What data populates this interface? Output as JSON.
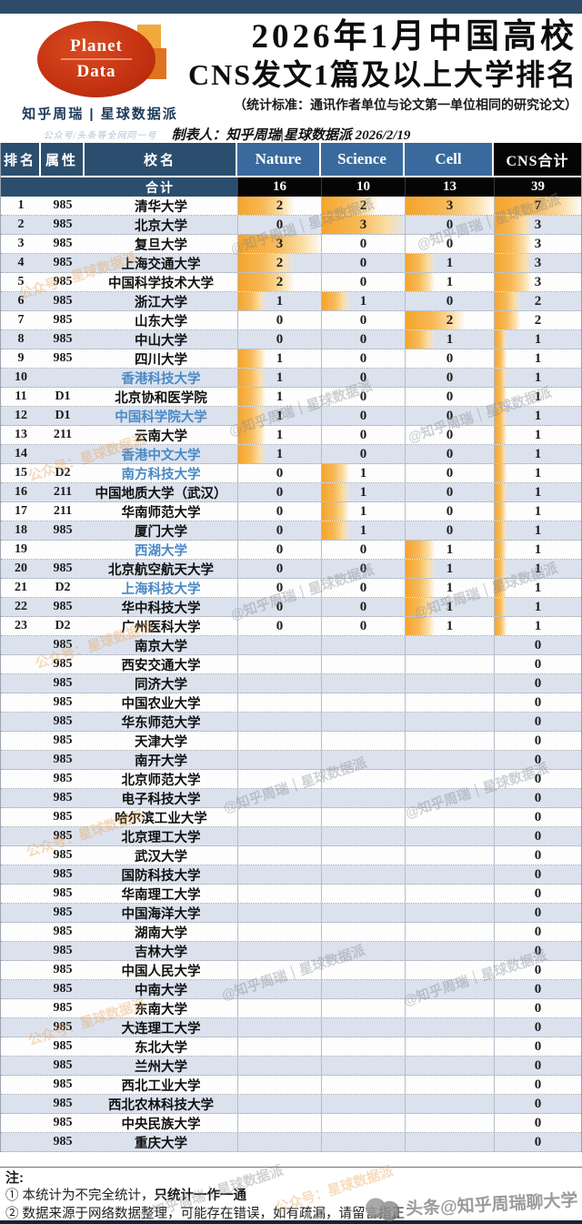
{
  "header": {
    "logo": {
      "line1": "Planet",
      "line2": "Data"
    },
    "brand": "知乎周瑞 | 星球数据派",
    "tagline": "公众号/头条等全网同一号",
    "title_line1": "2026年1月中国高校",
    "title_line2": "CNS发文1篇及以上大学排名",
    "subtitle": "（统计标准：通讯作者单位与论文第一单位相同的研究论文）",
    "byline": "制表人：知乎周瑞|星球数据派 2026/2/19"
  },
  "chart_data": {
    "type": "table",
    "title": "2026年1月中国高校CNS发文1篇及以上大学排名",
    "columns": [
      "排名",
      "属性",
      "校名",
      "Nature",
      "Science",
      "Cell",
      "CNS合计"
    ],
    "total_row": {
      "label": "合计",
      "nature": 16,
      "science": 10,
      "cell": 13,
      "cns": 39
    },
    "rows": [
      {
        "rank": "1",
        "attr": "985",
        "name": "清华大学",
        "nature": 2,
        "science": 2,
        "cell": 3,
        "cns": 7,
        "blue": false
      },
      {
        "rank": "2",
        "attr": "985",
        "name": "北京大学",
        "nature": 0,
        "science": 3,
        "cell": 0,
        "cns": 3,
        "blue": false
      },
      {
        "rank": "3",
        "attr": "985",
        "name": "复旦大学",
        "nature": 3,
        "science": 0,
        "cell": 0,
        "cns": 3,
        "blue": false
      },
      {
        "rank": "4",
        "attr": "985",
        "name": "上海交通大学",
        "nature": 2,
        "science": 0,
        "cell": 1,
        "cns": 3,
        "blue": false
      },
      {
        "rank": "5",
        "attr": "985",
        "name": "中国科学技术大学",
        "nature": 2,
        "science": 0,
        "cell": 1,
        "cns": 3,
        "blue": false
      },
      {
        "rank": "6",
        "attr": "985",
        "name": "浙江大学",
        "nature": 1,
        "science": 1,
        "cell": 0,
        "cns": 2,
        "blue": false
      },
      {
        "rank": "7",
        "attr": "985",
        "name": "山东大学",
        "nature": 0,
        "science": 0,
        "cell": 2,
        "cns": 2,
        "blue": false
      },
      {
        "rank": "8",
        "attr": "985",
        "name": "中山大学",
        "nature": 0,
        "science": 0,
        "cell": 1,
        "cns": 1,
        "blue": false
      },
      {
        "rank": "9",
        "attr": "985",
        "name": "四川大学",
        "nature": 1,
        "science": 0,
        "cell": 0,
        "cns": 1,
        "blue": false
      },
      {
        "rank": "10",
        "attr": "",
        "name": "香港科技大学",
        "nature": 1,
        "science": 0,
        "cell": 0,
        "cns": 1,
        "blue": true
      },
      {
        "rank": "11",
        "attr": "D1",
        "name": "北京协和医学院",
        "nature": 1,
        "science": 0,
        "cell": 0,
        "cns": 1,
        "blue": false
      },
      {
        "rank": "12",
        "attr": "D1",
        "name": "中国科学院大学",
        "nature": 1,
        "science": 0,
        "cell": 0,
        "cns": 1,
        "blue": true
      },
      {
        "rank": "13",
        "attr": "211",
        "name": "云南大学",
        "nature": 1,
        "science": 0,
        "cell": 0,
        "cns": 1,
        "blue": false
      },
      {
        "rank": "14",
        "attr": "",
        "name": "香港中文大学",
        "nature": 1,
        "science": 0,
        "cell": 0,
        "cns": 1,
        "blue": true
      },
      {
        "rank": "15",
        "attr": "D2",
        "name": "南方科技大学",
        "nature": 0,
        "science": 1,
        "cell": 0,
        "cns": 1,
        "blue": true
      },
      {
        "rank": "16",
        "attr": "211",
        "name": "中国地质大学（武汉）",
        "nature": 0,
        "science": 1,
        "cell": 0,
        "cns": 1,
        "blue": false
      },
      {
        "rank": "17",
        "attr": "211",
        "name": "华南师范大学",
        "nature": 0,
        "science": 1,
        "cell": 0,
        "cns": 1,
        "blue": false
      },
      {
        "rank": "18",
        "attr": "985",
        "name": "厦门大学",
        "nature": 0,
        "science": 1,
        "cell": 0,
        "cns": 1,
        "blue": false
      },
      {
        "rank": "19",
        "attr": "",
        "name": "西湖大学",
        "nature": 0,
        "science": 0,
        "cell": 1,
        "cns": 1,
        "blue": true
      },
      {
        "rank": "20",
        "attr": "985",
        "name": "北京航空航天大学",
        "nature": 0,
        "science": 0,
        "cell": 1,
        "cns": 1,
        "blue": false
      },
      {
        "rank": "21",
        "attr": "D2",
        "name": "上海科技大学",
        "nature": 0,
        "science": 0,
        "cell": 1,
        "cns": 1,
        "blue": true
      },
      {
        "rank": "22",
        "attr": "985",
        "name": "华中科技大学",
        "nature": 0,
        "science": 0,
        "cell": 1,
        "cns": 1,
        "blue": false
      },
      {
        "rank": "23",
        "attr": "D2",
        "name": "广州医科大学",
        "nature": 0,
        "science": 0,
        "cell": 1,
        "cns": 1,
        "blue": false
      },
      {
        "rank": "",
        "attr": "985",
        "name": "南京大学",
        "nature": null,
        "science": null,
        "cell": null,
        "cns": 0,
        "blue": false
      },
      {
        "rank": "",
        "attr": "985",
        "name": "西安交通大学",
        "nature": null,
        "science": null,
        "cell": null,
        "cns": 0,
        "blue": false
      },
      {
        "rank": "",
        "attr": "985",
        "name": "同济大学",
        "nature": null,
        "science": null,
        "cell": null,
        "cns": 0,
        "blue": false
      },
      {
        "rank": "",
        "attr": "985",
        "name": "中国农业大学",
        "nature": null,
        "science": null,
        "cell": null,
        "cns": 0,
        "blue": false
      },
      {
        "rank": "",
        "attr": "985",
        "name": "华东师范大学",
        "nature": null,
        "science": null,
        "cell": null,
        "cns": 0,
        "blue": false
      },
      {
        "rank": "",
        "attr": "985",
        "name": "天津大学",
        "nature": null,
        "science": null,
        "cell": null,
        "cns": 0,
        "blue": false
      },
      {
        "rank": "",
        "attr": "985",
        "name": "南开大学",
        "nature": null,
        "science": null,
        "cell": null,
        "cns": 0,
        "blue": false
      },
      {
        "rank": "",
        "attr": "985",
        "name": "北京师范大学",
        "nature": null,
        "science": null,
        "cell": null,
        "cns": 0,
        "blue": false
      },
      {
        "rank": "",
        "attr": "985",
        "name": "电子科技大学",
        "nature": null,
        "science": null,
        "cell": null,
        "cns": 0,
        "blue": false
      },
      {
        "rank": "",
        "attr": "985",
        "name": "哈尔滨工业大学",
        "nature": null,
        "science": null,
        "cell": null,
        "cns": 0,
        "blue": false
      },
      {
        "rank": "",
        "attr": "985",
        "name": "北京理工大学",
        "nature": null,
        "science": null,
        "cell": null,
        "cns": 0,
        "blue": false
      },
      {
        "rank": "",
        "attr": "985",
        "name": "武汉大学",
        "nature": null,
        "science": null,
        "cell": null,
        "cns": 0,
        "blue": false
      },
      {
        "rank": "",
        "attr": "985",
        "name": "国防科技大学",
        "nature": null,
        "science": null,
        "cell": null,
        "cns": 0,
        "blue": false
      },
      {
        "rank": "",
        "attr": "985",
        "name": "华南理工大学",
        "nature": null,
        "science": null,
        "cell": null,
        "cns": 0,
        "blue": false
      },
      {
        "rank": "",
        "attr": "985",
        "name": "中国海洋大学",
        "nature": null,
        "science": null,
        "cell": null,
        "cns": 0,
        "blue": false
      },
      {
        "rank": "",
        "attr": "985",
        "name": "湖南大学",
        "nature": null,
        "science": null,
        "cell": null,
        "cns": 0,
        "blue": false
      },
      {
        "rank": "",
        "attr": "985",
        "name": "吉林大学",
        "nature": null,
        "science": null,
        "cell": null,
        "cns": 0,
        "blue": false
      },
      {
        "rank": "",
        "attr": "985",
        "name": "中国人民大学",
        "nature": null,
        "science": null,
        "cell": null,
        "cns": 0,
        "blue": false
      },
      {
        "rank": "",
        "attr": "985",
        "name": "中南大学",
        "nature": null,
        "science": null,
        "cell": null,
        "cns": 0,
        "blue": false
      },
      {
        "rank": "",
        "attr": "985",
        "name": "东南大学",
        "nature": null,
        "science": null,
        "cell": null,
        "cns": 0,
        "blue": false
      },
      {
        "rank": "",
        "attr": "985",
        "name": "大连理工大学",
        "nature": null,
        "science": null,
        "cell": null,
        "cns": 0,
        "blue": false
      },
      {
        "rank": "",
        "attr": "985",
        "name": "东北大学",
        "nature": null,
        "science": null,
        "cell": null,
        "cns": 0,
        "blue": false
      },
      {
        "rank": "",
        "attr": "985",
        "name": "兰州大学",
        "nature": null,
        "science": null,
        "cell": null,
        "cns": 0,
        "blue": false
      },
      {
        "rank": "",
        "attr": "985",
        "name": "西北工业大学",
        "nature": null,
        "science": null,
        "cell": null,
        "cns": 0,
        "blue": false
      },
      {
        "rank": "",
        "attr": "985",
        "name": "西北农林科技大学",
        "nature": null,
        "science": null,
        "cell": null,
        "cns": 0,
        "blue": false
      },
      {
        "rank": "",
        "attr": "985",
        "name": "中央民族大学",
        "nature": null,
        "science": null,
        "cell": null,
        "cns": 0,
        "blue": false
      },
      {
        "rank": "",
        "attr": "985",
        "name": "重庆大学",
        "nature": null,
        "science": null,
        "cell": null,
        "cns": 0,
        "blue": false
      }
    ],
    "colors": {
      "bar_orange": "#f5a42c",
      "header_navy": "#2c4e6e",
      "header_blue": "#3a6a9d",
      "header_black": "#050505",
      "stripe": "#dbe2ee",
      "blue_school": "#4a89c4"
    }
  },
  "notes": {
    "heading": "注:",
    "note1_prefix": "① 本统计为不完全统计，",
    "note1_bold": "只统计一作一通",
    "note2": "② 数据来源于网络数据整理，可能存在错误，如有疏漏，请留言指正"
  },
  "watermarks": {
    "grey": "@知乎周瑞｜星球数据派",
    "orange": "公众号：星球数据派",
    "corner": "头条@知乎周瑞聊大学"
  }
}
